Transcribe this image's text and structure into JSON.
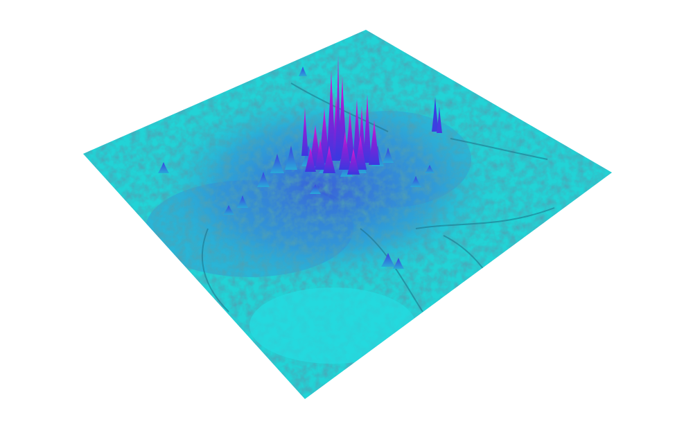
{
  "colors": {
    "background": "#ffffff",
    "surface_base": "#22d3d6",
    "surface_mid": "#3a7fd8",
    "surface_high": "#3b38e0",
    "peak": "#d01ad0",
    "shadow": "#1b6f86"
  }
}
